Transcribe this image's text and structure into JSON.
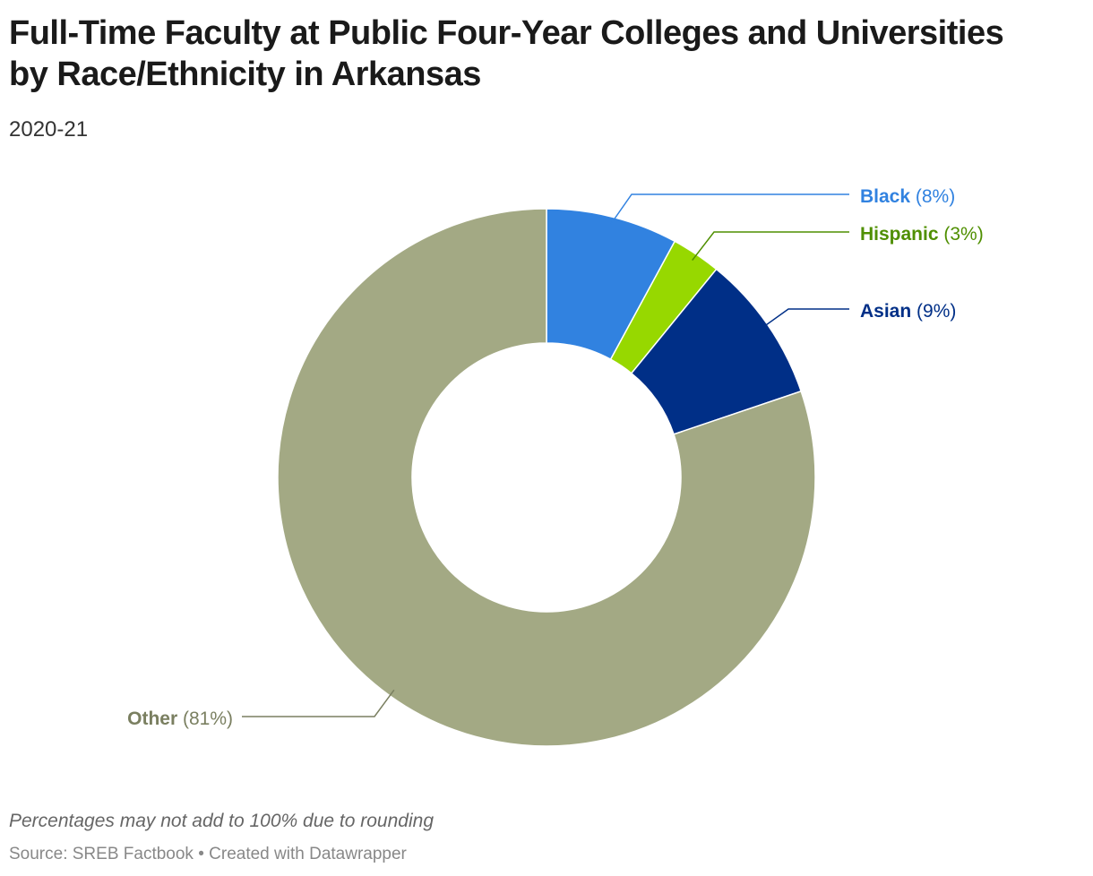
{
  "title": "Full-Time Faculty at Public Four-Year Colleges and Universities by Race/Ethnicity in Arkansas",
  "subtitle": "2020-21",
  "note": "Percentages may not add to 100% due to rounding",
  "source": "Source: SREB Factbook",
  "credit": "Created with Datawrapper",
  "separator": "•",
  "chart_data": {
    "type": "pie",
    "variant": "donut",
    "unit": "%",
    "slices": [
      {
        "name": "Black",
        "value": 8,
        "label": "(8%)",
        "color": "#3182e0"
      },
      {
        "name": "Hispanic",
        "value": 3,
        "label": "(3%)",
        "color": "#97d800"
      },
      {
        "name": "Asian",
        "value": 9,
        "label": "(9%)",
        "color": "#002f87"
      },
      {
        "name": "Other",
        "value": 81,
        "label": "(81%)",
        "color": "#a3a984"
      }
    ],
    "label_colors": {
      "Black": "#3182e0",
      "Hispanic": "#4f8f00",
      "Asian": "#002f87",
      "Other": "#7a7f60"
    }
  }
}
